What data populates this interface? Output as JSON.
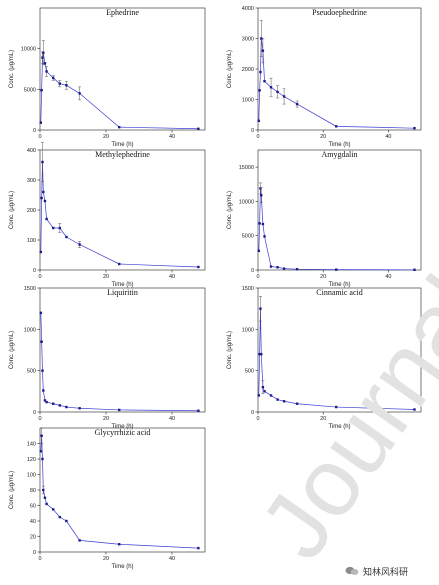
{
  "chart_data": [
    {
      "type": "line",
      "title": "Ephedrine",
      "xlabel": "Time (h)",
      "ylabel": "Conc. (μg/mL)",
      "xlim": [
        0,
        50
      ],
      "ylim": [
        0,
        15000
      ],
      "xticks": [
        0,
        20,
        40
      ],
      "yticks": [
        0,
        5000,
        10000
      ],
      "color": "#3b3bd6",
      "series": [
        {
          "x": [
            0.25,
            0.5,
            0.75,
            1,
            1.5,
            2,
            4,
            6,
            8,
            12,
            24,
            48
          ],
          "y": [
            900,
            4900,
            8900,
            9500,
            8200,
            7200,
            6400,
            5700,
            5500,
            4500,
            350,
            150
          ],
          "err": [
            0,
            0,
            700,
            1500,
            0,
            600,
            300,
            400,
            500,
            800,
            0,
            0
          ]
        }
      ]
    },
    {
      "type": "line",
      "title": "Pseudoephedrine",
      "xlabel": "Time (h)",
      "ylabel": "Conc. (μg/mL)",
      "xlim": [
        0,
        50
      ],
      "ylim": [
        0,
        4000
      ],
      "xticks": [
        0,
        20,
        40
      ],
      "yticks": [
        0,
        1000,
        2000,
        3000,
        4000
      ],
      "color": "#3b3bd6",
      "series": [
        {
          "x": [
            0.25,
            0.5,
            0.75,
            1,
            1.5,
            2,
            4,
            6,
            8,
            12,
            24,
            48
          ],
          "y": [
            300,
            1300,
            1900,
            3000,
            2600,
            1600,
            1400,
            1250,
            1100,
            850,
            120,
            60
          ],
          "err": [
            0,
            0,
            0,
            600,
            400,
            0,
            300,
            200,
            250,
            100,
            0,
            0
          ]
        }
      ]
    },
    {
      "type": "line",
      "title": "Methylephedrine",
      "xlabel": "Time (h)",
      "ylabel": "Conc. (μg/mL)",
      "xlim": [
        0,
        50
      ],
      "ylim": [
        0,
        400
      ],
      "xticks": [
        0,
        20,
        40
      ],
      "yticks": [
        0,
        100,
        200,
        300,
        400
      ],
      "color": "#3b3bd6",
      "series": [
        {
          "x": [
            0.25,
            0.5,
            0.75,
            1,
            1.5,
            2,
            4,
            6,
            8,
            12,
            24,
            48
          ],
          "y": [
            60,
            240,
            360,
            260,
            230,
            170,
            140,
            140,
            110,
            85,
            20,
            10
          ],
          "err": [
            0,
            0,
            65,
            0,
            0,
            0,
            0,
            15,
            0,
            10,
            0,
            0
          ]
        }
      ]
    },
    {
      "type": "line",
      "title": "Amygdalin",
      "xlabel": "Time (h)",
      "ylabel": "Conc. (μg/mL)",
      "xlim": [
        0,
        50
      ],
      "ylim": [
        0,
        17500
      ],
      "xticks": [
        0,
        20,
        40
      ],
      "yticks": [
        0,
        5000,
        10000,
        15000
      ],
      "color": "#3b3bd6",
      "series": [
        {
          "x": [
            0.25,
            0.5,
            0.75,
            1,
            1.5,
            2,
            4,
            6,
            8,
            12,
            24,
            48
          ],
          "y": [
            2800,
            6800,
            11900,
            10900,
            6700,
            4900,
            500,
            400,
            200,
            120,
            50,
            30
          ],
          "err": [
            0,
            0,
            800,
            1100,
            0,
            0,
            0,
            0,
            0,
            0,
            0,
            0
          ]
        }
      ]
    },
    {
      "type": "line",
      "title": "Liquiritin",
      "xlabel": "Time (h)",
      "ylabel": "Conc. (μg/mL)",
      "xlim": [
        0,
        50
      ],
      "ylim": [
        0,
        1500
      ],
      "xticks": [
        0,
        20,
        40
      ],
      "yticks": [
        0,
        500,
        1000,
        1500
      ],
      "color": "#3b3bd6",
      "series": [
        {
          "x": [
            0.25,
            0.5,
            0.75,
            1,
            1.5,
            2,
            4,
            6,
            8,
            12,
            24,
            48
          ],
          "y": [
            1200,
            850,
            500,
            260,
            140,
            120,
            100,
            80,
            60,
            45,
            25,
            15
          ],
          "err": [
            0,
            0,
            0,
            0,
            0,
            0,
            0,
            0,
            0,
            0,
            0,
            0
          ]
        }
      ]
    },
    {
      "type": "line",
      "title": "Cinnamic acid",
      "xlabel": "Time (h)",
      "ylabel": "Conc. (μg/mL)",
      "xlim": [
        0,
        50
      ],
      "ylim": [
        0,
        1500
      ],
      "xticks": [
        0,
        20,
        40
      ],
      "yticks": [
        0,
        500,
        1000,
        1500
      ],
      "color": "#3b3bd6",
      "series": [
        {
          "x": [
            0.25,
            0.5,
            0.75,
            1,
            1.5,
            2,
            4,
            6,
            8,
            12,
            24,
            48
          ],
          "y": [
            200,
            700,
            1250,
            700,
            300,
            250,
            200,
            150,
            130,
            100,
            60,
            30
          ],
          "err": [
            0,
            0,
            150,
            0,
            80,
            0,
            0,
            0,
            0,
            0,
            0,
            0
          ]
        }
      ]
    },
    {
      "type": "line",
      "title": "Glycyrrhizic acid",
      "xlabel": "Time (h)",
      "ylabel": "Conc. (μg/mL)",
      "xlim": [
        0,
        50
      ],
      "ylim": [
        0,
        160
      ],
      "xticks": [
        0,
        20,
        40
      ],
      "yticks": [
        0,
        20,
        40,
        60,
        80,
        100,
        120,
        140
      ],
      "color": "#3b3bd6",
      "series": [
        {
          "x": [
            0.25,
            0.5,
            0.75,
            1,
            1.5,
            2,
            4,
            6,
            8,
            12,
            24,
            48
          ],
          "y": [
            130,
            150,
            120,
            80,
            70,
            62,
            55,
            45,
            40,
            15,
            10,
            5
          ],
          "err": [
            0,
            10,
            0,
            5,
            0,
            0,
            0,
            0,
            0,
            0,
            0,
            0
          ]
        }
      ]
    }
  ],
  "watermark": "Journal Pr",
  "badge": {
    "text": "知林风科研"
  }
}
